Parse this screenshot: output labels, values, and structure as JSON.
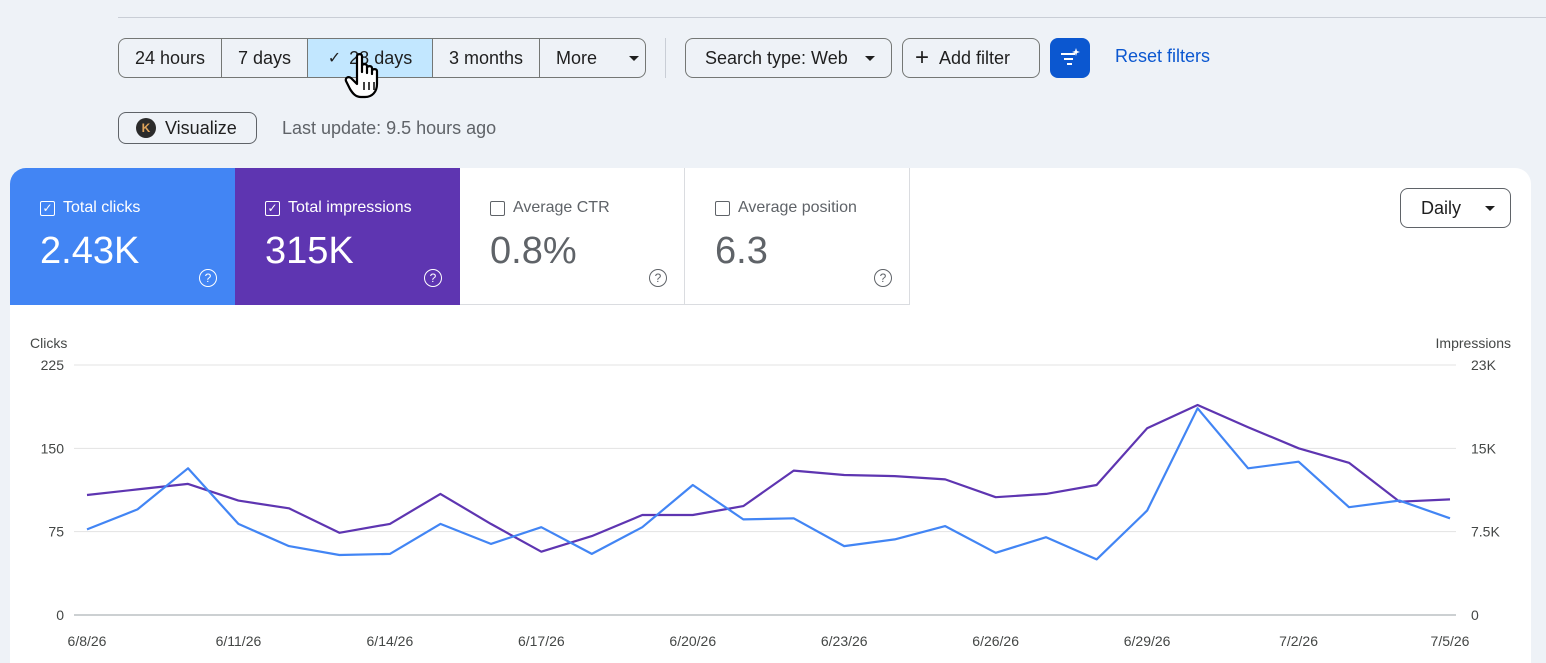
{
  "date_range": {
    "options": [
      {
        "label": "24 hours",
        "selected": false
      },
      {
        "label": "7 days",
        "selected": false
      },
      {
        "label": "28 days",
        "selected": true
      },
      {
        "label": "3 months",
        "selected": false
      },
      {
        "label": "More",
        "selected": false
      }
    ]
  },
  "filters": {
    "search_type_label": "Search type: Web",
    "add_filter_label": "Add filter",
    "reset_label": "Reset filters"
  },
  "visualize_label": "Visualize",
  "last_update": "Last update: 9.5 hours ago",
  "metrics": [
    {
      "label": "Total clicks",
      "value": "2.43K",
      "checked": true
    },
    {
      "label": "Total impressions",
      "value": "315K",
      "checked": true
    },
    {
      "label": "Average CTR",
      "value": "0.8%",
      "checked": false
    },
    {
      "label": "Average position",
      "value": "6.3",
      "checked": false
    }
  ],
  "granularity": "Daily",
  "colors": {
    "clicks": "#4285f4",
    "impressions": "#5e35b1",
    "accent": "#0b57d0",
    "selected_bg": "#c2e7ff"
  },
  "chart_data": {
    "type": "line",
    "left_axis_label": "Clicks",
    "right_axis_label": "Impressions",
    "left_ticks": [
      "225",
      "150",
      "75",
      "0"
    ],
    "right_ticks": [
      "23K",
      "15K",
      "7.5K",
      "0"
    ],
    "left_range": [
      0,
      225
    ],
    "right_range": [
      0,
      22500
    ],
    "grid": true,
    "x_tick_labels": [
      "6/8/26",
      "6/11/26",
      "6/14/26",
      "6/17/26",
      "6/20/26",
      "6/23/26",
      "6/26/26",
      "6/29/26",
      "7/2/26",
      "7/5/26"
    ],
    "x": [
      "6/8/26",
      "6/9/26",
      "6/10/26",
      "6/11/26",
      "6/12/26",
      "6/13/26",
      "6/14/26",
      "6/15/26",
      "6/16/26",
      "6/17/26",
      "6/18/26",
      "6/19/26",
      "6/20/26",
      "6/21/26",
      "6/22/26",
      "6/23/26",
      "6/24/26",
      "6/25/26",
      "6/26/26",
      "6/27/26",
      "6/28/26",
      "6/29/26",
      "6/30/26",
      "7/1/26",
      "7/2/26",
      "7/3/26",
      "7/4/26",
      "7/5/26"
    ],
    "series": [
      {
        "name": "Clicks",
        "axis": "left",
        "values": [
          77,
          95,
          132,
          82,
          62,
          54,
          55,
          82,
          64,
          79,
          55,
          79,
          117,
          86,
          87,
          62,
          68,
          80,
          56,
          70,
          50,
          94,
          186,
          132,
          138,
          97,
          103,
          87
        ]
      },
      {
        "name": "Impressions",
        "axis": "right",
        "values": [
          10800,
          11300,
          11800,
          10300,
          9600,
          7400,
          8200,
          10900,
          8200,
          5700,
          7100,
          9000,
          9000,
          9800,
          13000,
          12600,
          12500,
          12200,
          10600,
          10900,
          11700,
          16800,
          18900,
          16900,
          15000,
          13700,
          10200,
          10400
        ]
      }
    ]
  }
}
